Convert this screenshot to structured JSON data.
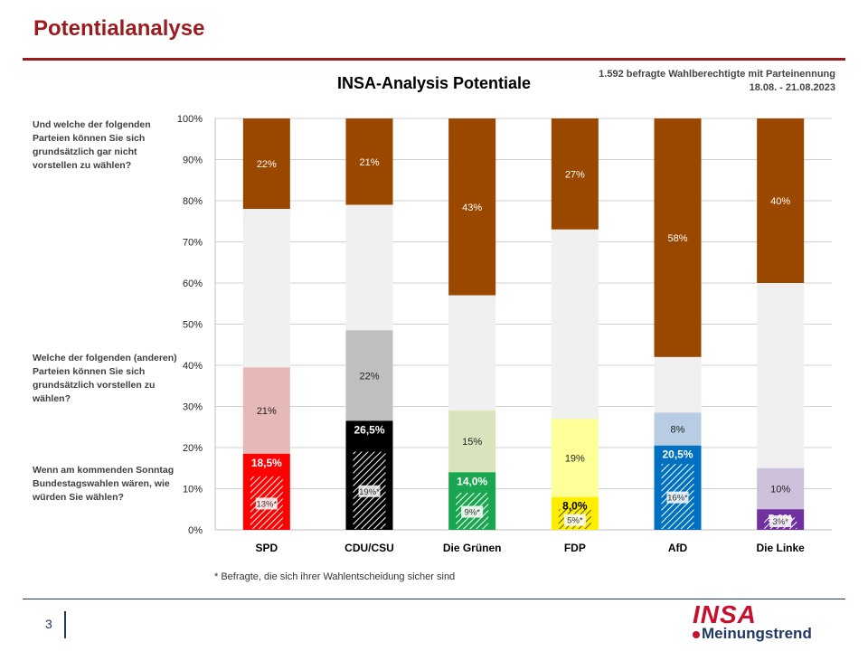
{
  "header": {
    "title": "Potentialanalyse",
    "source_line1": "1.592 befragte Wahlberechtigte mit Parteinennung",
    "source_line2": "18.08. - 21.08.2023"
  },
  "questions": {
    "not_imaginable": "Und welche der folgenden Parteien können Sie sich grundsätzlich gar nicht vorstellen zu wählen?",
    "imaginable": "Welche der folgenden (anderen) Parteien können Sie sich grundsätzlich vorstellen zu wählen?",
    "vote": "Wenn am kommenden Sonntag Bundestagswahlen wären, wie würden Sie wählen?"
  },
  "footnote": "* Befragte, die sich ihrer Wahlentscheidung sicher sind",
  "footer": {
    "page_number": "3",
    "logo_main": "INSA",
    "logo_sub": "Meinungstrend"
  },
  "colors": {
    "brand_red": "#9b1c1f",
    "navy": "#1f3864",
    "not_imaginable": "#9a4700",
    "gap": "#f0f0f0"
  },
  "chart_data": {
    "type": "bar",
    "stacked": true,
    "title": "INSA-Analysis Potentiale",
    "ylim": [
      0,
      100
    ],
    "yticks": [
      "0%",
      "10%",
      "20%",
      "30%",
      "40%",
      "50%",
      "60%",
      "70%",
      "80%",
      "90%",
      "100%"
    ],
    "grid": true,
    "categories": [
      "SPD",
      "CDU/CSU",
      "Die Grünen",
      "FDP",
      "AfD",
      "Die Linke"
    ],
    "series": [
      {
        "values": [
          18.5,
          26.5,
          14.0,
          8.0,
          20.5,
          5.0
        ],
        "labels": [
          "18,5%",
          "26,5%",
          "14,0%",
          "8,0%",
          "20,5%",
          "5,0%"
        ],
        "colors": [
          "#ff0000",
          "#000000",
          "#1aa550",
          "#ffee00",
          "#0070c0",
          "#7030a0"
        ]
      },
      {
        "values": [
          13,
          19,
          9,
          5,
          16,
          3
        ],
        "labels": [
          "13%*",
          "19%*",
          "9%*",
          "5%*",
          "16%*",
          "3%*"
        ]
      },
      {
        "values": [
          21,
          22,
          15,
          19,
          8,
          10
        ],
        "labels": [
          "21%",
          "22%",
          "15%",
          "19%",
          "8%",
          "10%"
        ],
        "colors": [
          "#e6b8b7",
          "#bfbfbf",
          "#d8e4bc",
          "#ffff99",
          "#b8cce4",
          "#ccc0da"
        ]
      },
      {
        "values": [
          22,
          21,
          43,
          27,
          58,
          40
        ],
        "labels": [
          "22%",
          "21%",
          "43%",
          "27%",
          "58%",
          "40%"
        ]
      }
    ]
  }
}
